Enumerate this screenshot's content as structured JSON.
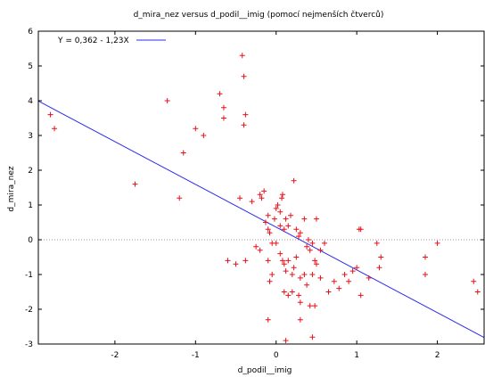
{
  "chart_data": {
    "type": "scatter",
    "title": "d_mira_nez versus d_podil__imig (pomocí nejmenších čtverců)",
    "xlabel": "d_podil__imig",
    "ylabel": "d_mira_nez",
    "xlim": [
      -2.95,
      2.58
    ],
    "ylim": [
      -3,
      6
    ],
    "x_ticks": [
      -2,
      -1,
      0,
      1,
      2
    ],
    "y_ticks": [
      -3,
      -2,
      -1,
      0,
      1,
      2,
      3,
      4,
      5,
      6
    ],
    "zero_line": true,
    "legend_position": "top-left",
    "marker": "+",
    "colors": {
      "points": "#e8111a",
      "fit_line": "#2b2bef",
      "zero_line": "#999999",
      "frame": "#000000"
    },
    "fit": {
      "label": "Y = 0,362 - 1,23X",
      "intercept": 0.362,
      "slope": -1.23
    },
    "points": [
      [
        -2.8,
        3.6
      ],
      [
        -2.75,
        3.2
      ],
      [
        -1.75,
        1.6
      ],
      [
        -1.35,
        4.0
      ],
      [
        -1.2,
        1.2
      ],
      [
        -1.15,
        2.5
      ],
      [
        -1.0,
        3.2
      ],
      [
        -0.9,
        3.0
      ],
      [
        -0.7,
        4.2
      ],
      [
        -0.65,
        3.8
      ],
      [
        -0.65,
        3.5
      ],
      [
        -0.42,
        5.3
      ],
      [
        -0.4,
        4.7
      ],
      [
        -0.38,
        3.6
      ],
      [
        -0.4,
        3.3
      ],
      [
        -0.45,
        1.2
      ],
      [
        -0.6,
        -0.6
      ],
      [
        -0.5,
        -0.7
      ],
      [
        -0.38,
        -0.6
      ],
      [
        -0.3,
        1.1
      ],
      [
        -0.2,
        1.3
      ],
      [
        -0.18,
        1.2
      ],
      [
        -0.15,
        1.4
      ],
      [
        -0.13,
        0.5
      ],
      [
        -0.1,
        0.3
      ],
      [
        -0.1,
        0.7
      ],
      [
        -0.08,
        0.2
      ],
      [
        -0.05,
        -0.1
      ],
      [
        -0.02,
        0.6
      ],
      [
        0.0,
        0.9
      ],
      [
        0.02,
        1.0
      ],
      [
        0.05,
        0.4
      ],
      [
        0.05,
        0.8
      ],
      [
        0.07,
        1.2
      ],
      [
        0.08,
        1.3
      ],
      [
        0.1,
        0.3
      ],
      [
        0.12,
        0.6
      ],
      [
        0.15,
        0.4
      ],
      [
        0.18,
        0.7
      ],
      [
        0.22,
        1.7
      ],
      [
        0.25,
        0.3
      ],
      [
        0.28,
        0.1
      ],
      [
        0.3,
        0.2
      ],
      [
        0.35,
        0.6
      ],
      [
        0.38,
        -0.2
      ],
      [
        0.4,
        0.0
      ],
      [
        0.42,
        -0.3
      ],
      [
        0.45,
        -0.1
      ],
      [
        0.5,
        0.6
      ],
      [
        0.55,
        -0.3
      ],
      [
        0.6,
        -0.1
      ],
      [
        -0.25,
        -0.2
      ],
      [
        -0.2,
        -0.3
      ],
      [
        -0.1,
        -0.6
      ],
      [
        -0.05,
        -1.0
      ],
      [
        -0.08,
        -1.2
      ],
      [
        0.0,
        -0.1
      ],
      [
        0.05,
        -0.4
      ],
      [
        0.08,
        -0.6
      ],
      [
        0.1,
        -0.7
      ],
      [
        0.12,
        -0.9
      ],
      [
        0.15,
        -0.6
      ],
      [
        0.2,
        -1.0
      ],
      [
        0.22,
        -0.8
      ],
      [
        0.25,
        -0.5
      ],
      [
        0.3,
        -1.1
      ],
      [
        0.35,
        -1.0
      ],
      [
        0.38,
        -1.3
      ],
      [
        0.45,
        -1.0
      ],
      [
        0.48,
        -0.6
      ],
      [
        0.5,
        -0.7
      ],
      [
        0.55,
        -1.1
      ],
      [
        0.1,
        -1.5
      ],
      [
        0.15,
        -1.6
      ],
      [
        0.2,
        -1.5
      ],
      [
        0.28,
        -1.6
      ],
      [
        0.3,
        -1.8
      ],
      [
        0.42,
        -1.9
      ],
      [
        0.48,
        -1.9
      ],
      [
        0.3,
        -2.3
      ],
      [
        -0.1,
        -2.3
      ],
      [
        0.12,
        -2.9
      ],
      [
        0.45,
        -2.8
      ],
      [
        0.65,
        -1.5
      ],
      [
        0.72,
        -1.2
      ],
      [
        0.78,
        -1.4
      ],
      [
        0.85,
        -1.0
      ],
      [
        0.9,
        -1.2
      ],
      [
        0.95,
        -0.9
      ],
      [
        1.0,
        -0.8
      ],
      [
        1.03,
        0.3
      ],
      [
        1.05,
        0.3
      ],
      [
        1.15,
        -1.1
      ],
      [
        1.25,
        -0.1
      ],
      [
        1.3,
        -0.5
      ],
      [
        1.28,
        -0.8
      ],
      [
        1.05,
        -1.6
      ],
      [
        1.85,
        -0.5
      ],
      [
        1.85,
        -1.0
      ],
      [
        2.0,
        -0.1
      ],
      [
        2.45,
        -1.2
      ],
      [
        2.5,
        -1.5
      ]
    ]
  }
}
